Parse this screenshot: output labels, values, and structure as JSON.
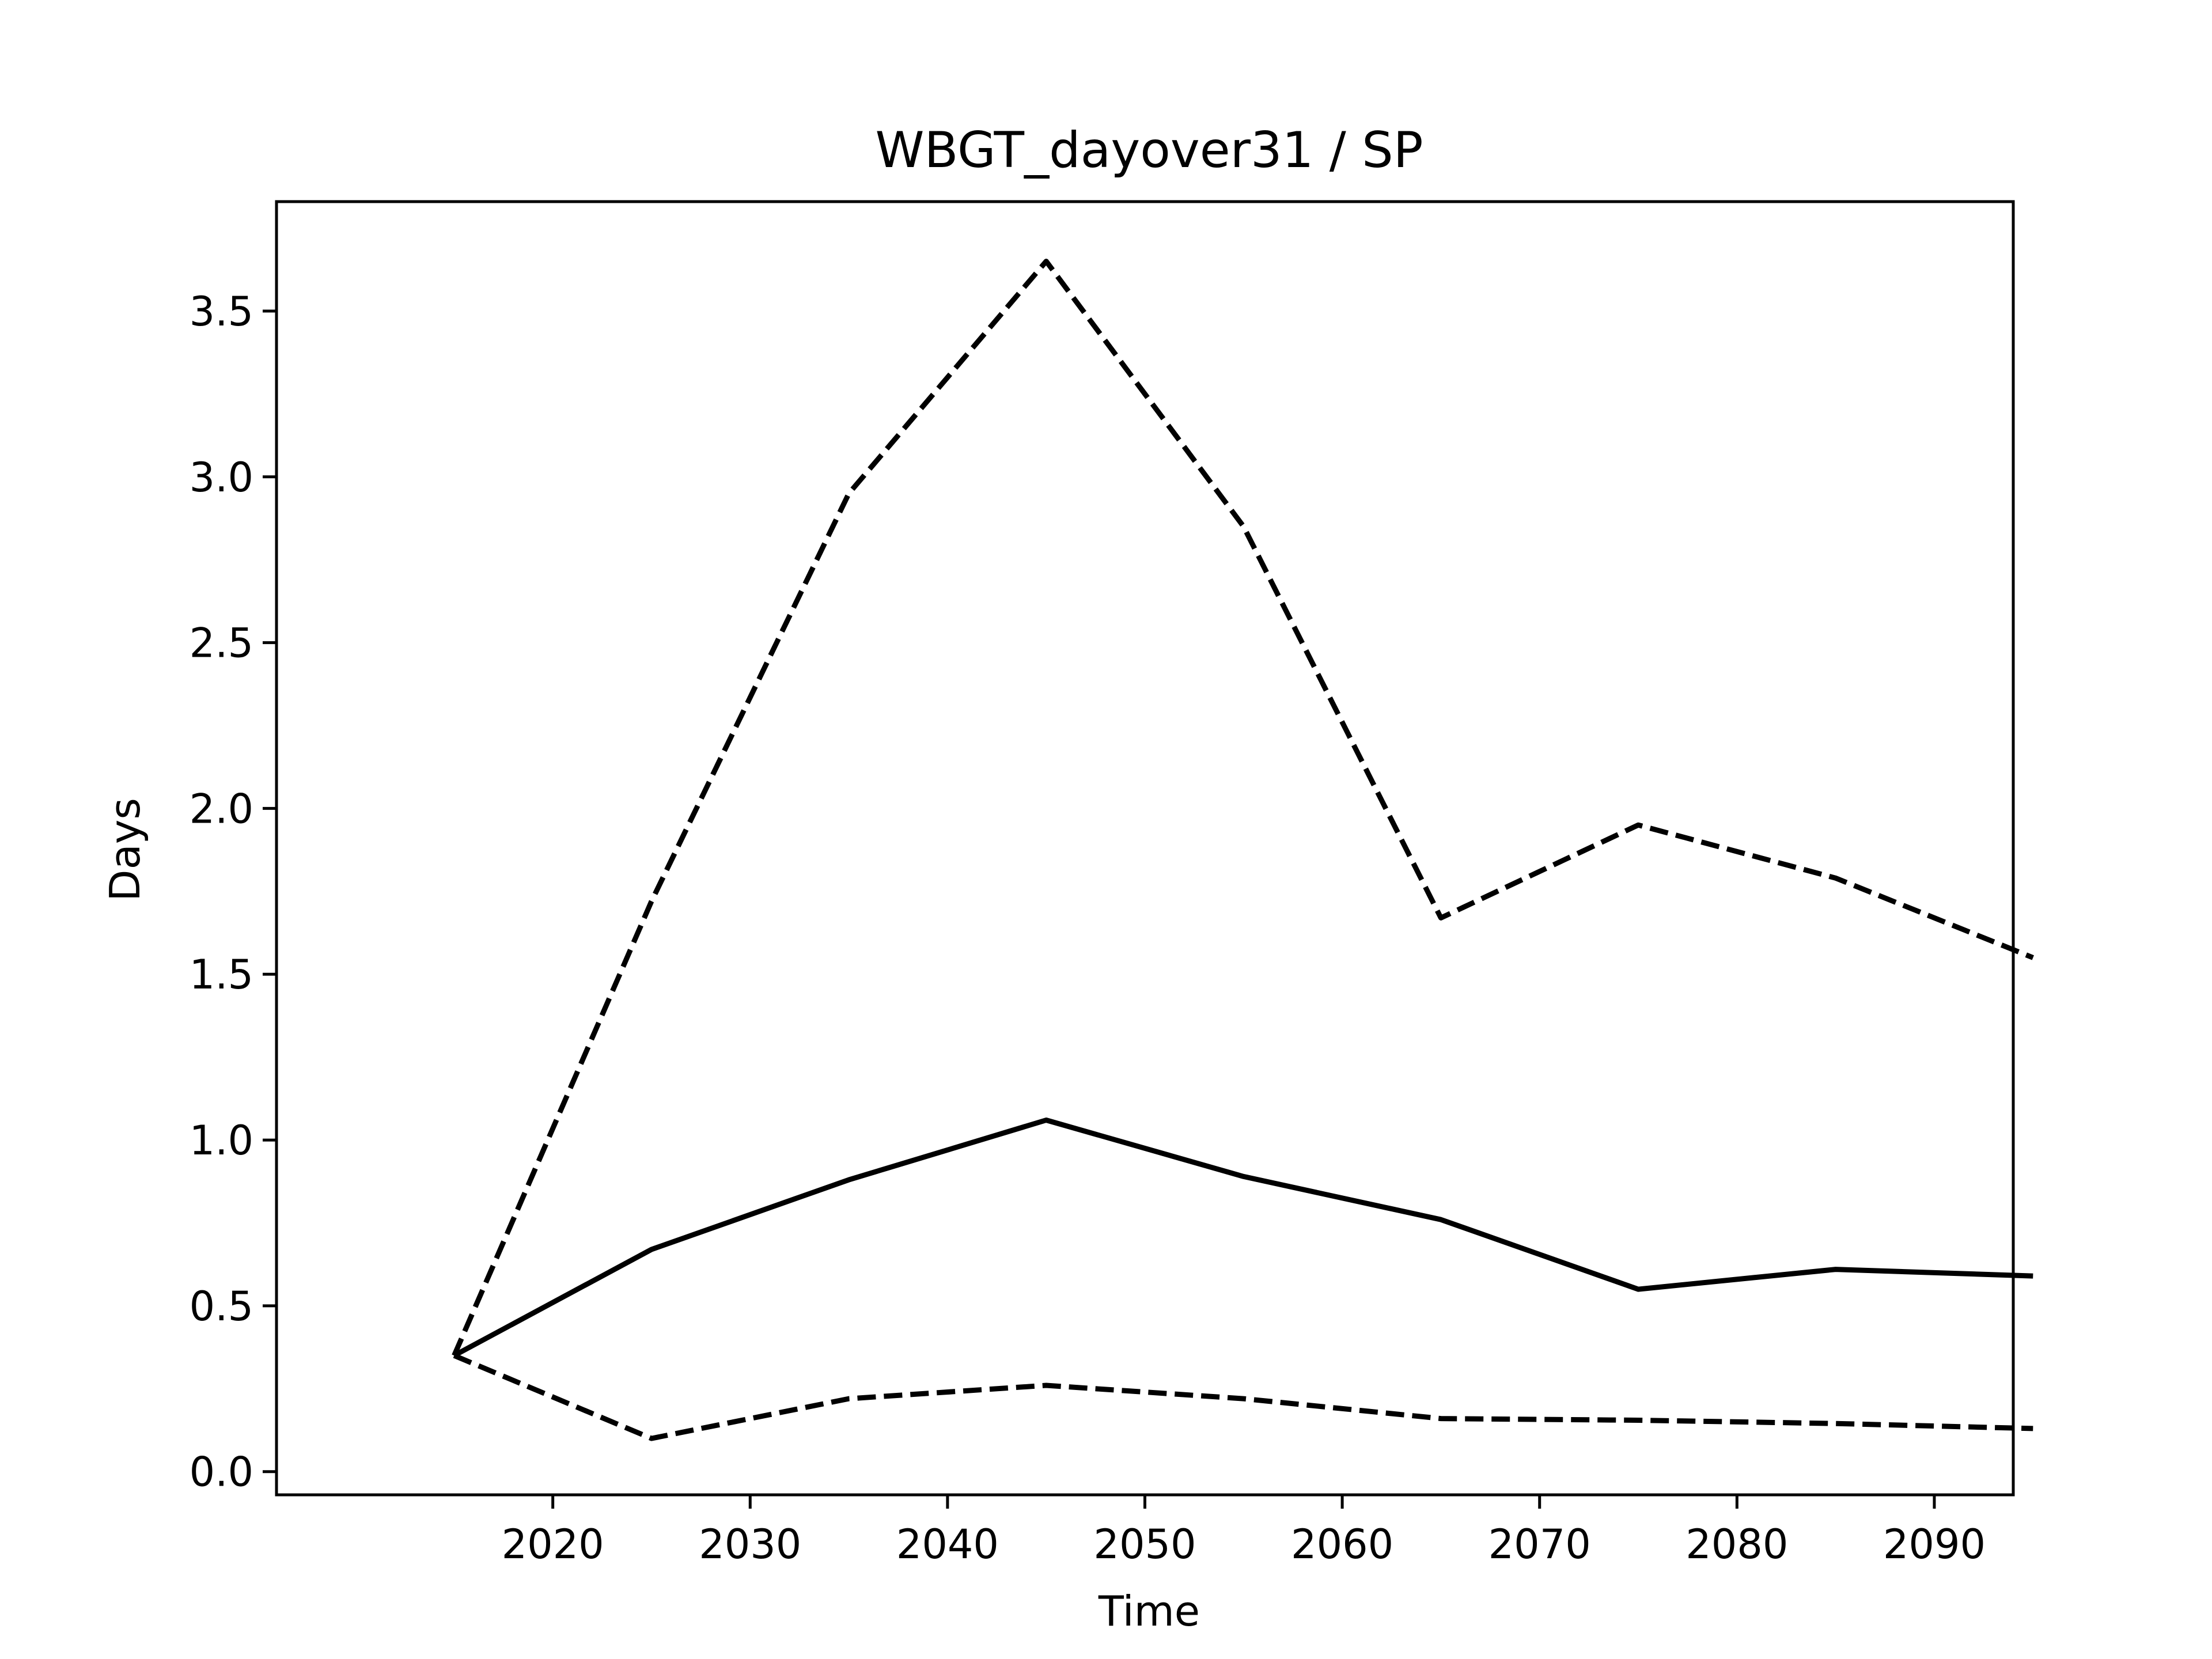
{
  "chart_data": {
    "type": "line",
    "title": "WBGT_dayover31 / SP",
    "xlabel": "Time",
    "ylabel": "Days",
    "x": [
      2015,
      2025,
      2035,
      2045,
      2055,
      2065,
      2075,
      2085,
      2095
    ],
    "xlim": [
      2006,
      2094
    ],
    "ylim": [
      -0.07,
      3.83
    ],
    "xticks": [
      2020,
      2030,
      2040,
      2050,
      2060,
      2070,
      2080,
      2090
    ],
    "yticks": [
      0.0,
      0.5,
      1.0,
      1.5,
      2.0,
      2.5,
      3.0,
      3.5
    ],
    "ytick_labels": [
      "0.0",
      "0.5",
      "1.0",
      "1.5",
      "2.0",
      "2.5",
      "3.0",
      "3.5"
    ],
    "grid": false,
    "legend": "none",
    "series": [
      {
        "style": "solid",
        "color": "#000000",
        "values": [
          0.35,
          0.67,
          0.88,
          1.06,
          0.89,
          0.76,
          0.55,
          0.61,
          0.59
        ]
      },
      {
        "style": "dashed",
        "color": "#000000",
        "values": [
          0.35,
          1.72,
          2.95,
          3.65,
          2.85,
          1.67,
          1.95,
          1.79,
          1.55
        ]
      },
      {
        "style": "dashed",
        "color": "#000000",
        "values": [
          0.35,
          0.1,
          0.22,
          0.26,
          0.22,
          0.16,
          0.155,
          0.145,
          0.13
        ]
      }
    ]
  }
}
